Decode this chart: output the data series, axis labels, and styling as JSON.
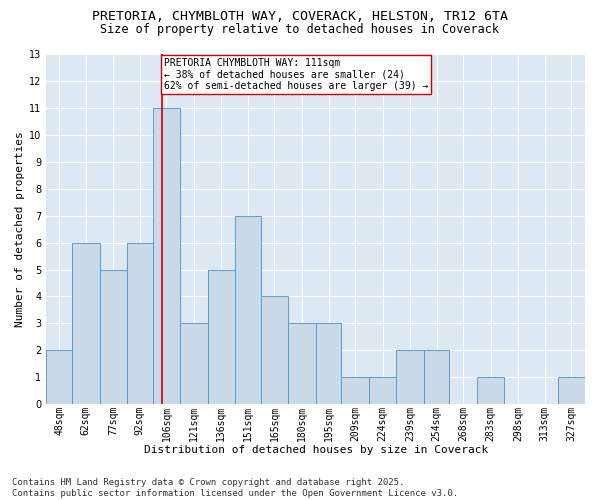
{
  "title_line1": "PRETORIA, CHYMBLOTH WAY, COVERACK, HELSTON, TR12 6TA",
  "title_line2": "Size of property relative to detached houses in Coverack",
  "xlabel": "Distribution of detached houses by size in Coverack",
  "ylabel": "Number of detached properties",
  "bar_edges": [
    48,
    62,
    77,
    92,
    106,
    121,
    136,
    151,
    165,
    180,
    195,
    209,
    224,
    239,
    254,
    268,
    283,
    298,
    313,
    327,
    342
  ],
  "bar_heights": [
    2,
    6,
    5,
    6,
    11,
    3,
    5,
    7,
    4,
    3,
    3,
    1,
    1,
    2,
    2,
    0,
    1,
    0,
    0,
    1
  ],
  "bar_color": "#c9d9e8",
  "bar_edgecolor": "#5b9bd5",
  "property_line_x": 111,
  "property_line_color": "#cc0000",
  "annotation_text": "PRETORIA CHYMBLOTH WAY: 111sqm\n← 38% of detached houses are smaller (24)\n62% of semi-detached houses are larger (39) →",
  "annotation_box_color": "#ffffff",
  "annotation_box_edgecolor": "#cc0000",
  "ylim": [
    0,
    13
  ],
  "yticks": [
    0,
    1,
    2,
    3,
    4,
    5,
    6,
    7,
    8,
    9,
    10,
    11,
    12,
    13
  ],
  "background_color": "#dde8f3",
  "footer_line1": "Contains HM Land Registry data © Crown copyright and database right 2025.",
  "footer_line2": "Contains public sector information licensed under the Open Government Licence v3.0.",
  "title_fontsize": 9.5,
  "subtitle_fontsize": 8.5,
  "axis_label_fontsize": 8,
  "tick_fontsize": 7,
  "annotation_fontsize": 7,
  "footer_fontsize": 6.5
}
